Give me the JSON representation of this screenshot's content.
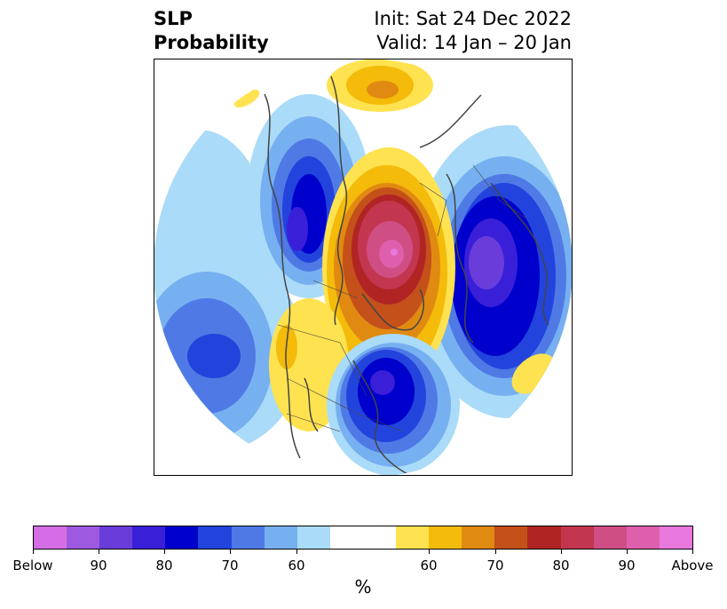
{
  "header": {
    "title_line1": "SLP",
    "title_line2": "Probability",
    "init": "Init: Sat 24 Dec 2022",
    "valid": "Valid: 14 Jan – 20 Jan"
  },
  "map": {
    "projection": "north-polar-stereographic",
    "fields": [
      "below-normal-probability",
      "above-normal-probability"
    ]
  },
  "colorbar": {
    "colors": [
      "#d56ee6",
      "#9d59e0",
      "#6a3ddb",
      "#3a1fd9",
      "#0000cc",
      "#2244dd",
      "#4f7ae6",
      "#77b0f0",
      "#aadbf8",
      "#ffffff",
      "#ffe24f",
      "#f4bb0a",
      "#e08a12",
      "#c4501a",
      "#b02524",
      "#c3364f",
      "#cf4f85",
      "#de60ad",
      "#e878dd"
    ],
    "labels": [
      "Below",
      "90",
      "80",
      "70",
      "60",
      "60",
      "70",
      "80",
      "90",
      "Above"
    ],
    "unit": "%"
  }
}
